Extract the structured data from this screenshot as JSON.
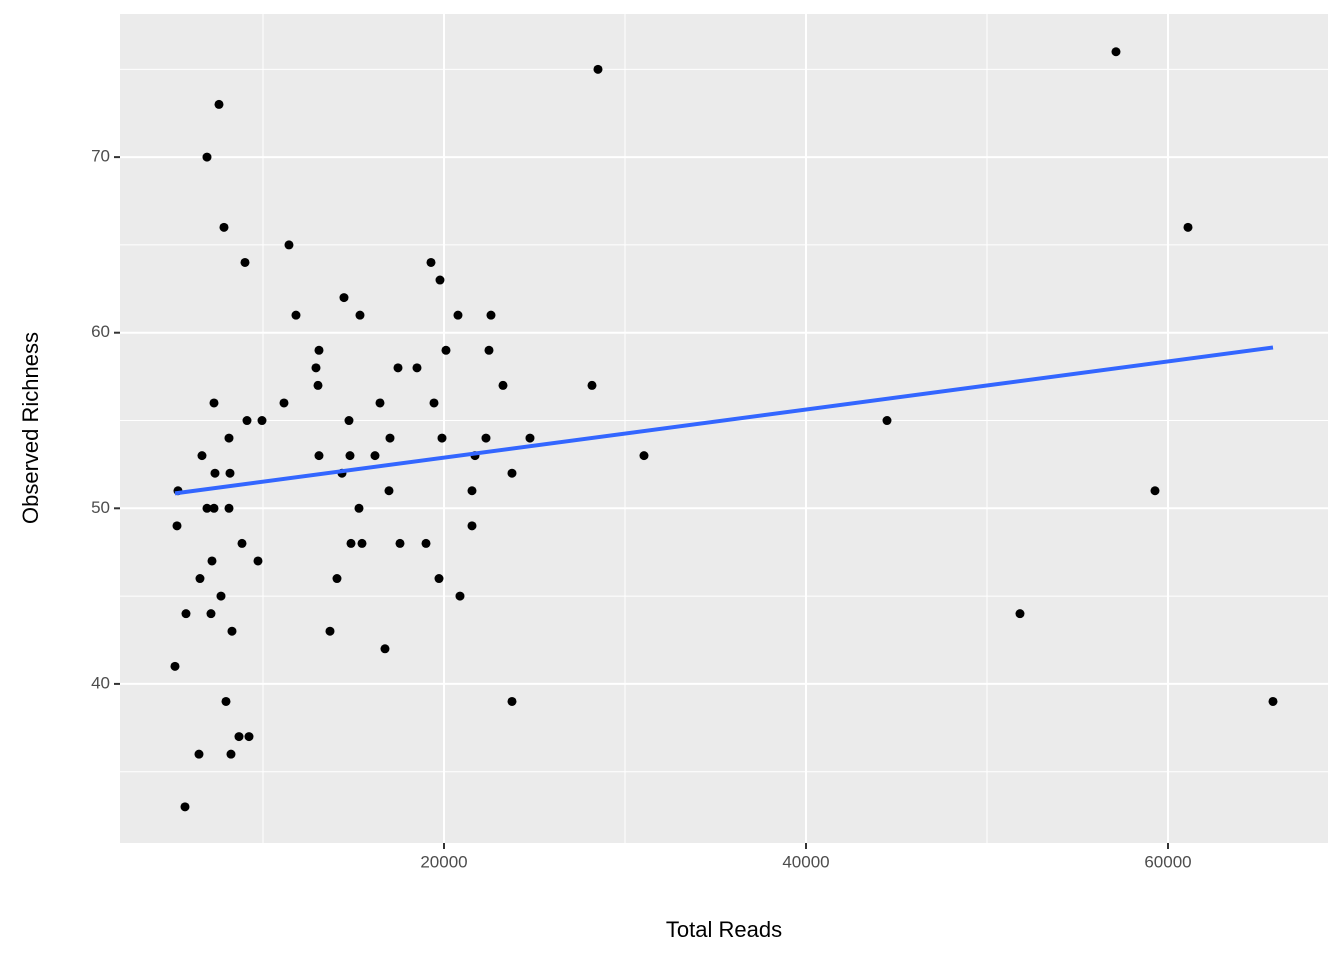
{
  "chart_data": {
    "type": "scatter",
    "x_label": "Total Reads",
    "y_label": "Observed Richness",
    "xlim": [
      2100,
      68840
    ],
    "ylim": [
      30.94,
      78.15
    ],
    "xticks": [
      20000,
      40000,
      60000
    ],
    "yticks": [
      40,
      50,
      60,
      70
    ],
    "minor_xticks": [
      10000,
      30000,
      50000
    ],
    "minor_yticks": [
      35,
      45,
      55,
      65,
      75
    ],
    "grid": true,
    "point_color": "#000000",
    "x": [
      5138,
      5304,
      5249,
      5691,
      5746,
      6464,
      6519,
      6630,
      6906,
      6906,
      7127,
      7182,
      7293,
      7293,
      7348,
      7569,
      7680,
      7845,
      7956,
      8122,
      8122,
      8177,
      8232,
      8287,
      8674,
      8840,
      9006,
      9116,
      9227,
      9724,
      9945,
      11160,
      11436,
      11823,
      12928,
      13039,
      13094,
      13094,
      13702,
      14088,
      14365,
      14475,
      14751,
      14807,
      14862,
      15304,
      15359,
      15470,
      16188,
      16464,
      16740,
      16961,
      17017,
      17459,
      17569,
      18508,
      19006,
      19282,
      19448,
      19724,
      19779,
      19890,
      20110,
      20773,
      20884,
      21547,
      21547,
      21713,
      22320,
      22486,
      22597,
      23260,
      23757,
      23757,
      24751,
      28177,
      28508,
      31050,
      44475,
      51823,
      57127,
      59282,
      61105,
      65801
    ],
    "y": [
      41,
      51,
      49,
      33,
      44,
      36,
      46,
      53,
      70,
      50,
      44,
      47,
      50,
      56,
      52,
      73,
      45,
      66,
      39,
      54,
      50,
      52,
      36,
      43,
      37,
      48,
      64,
      55,
      37,
      47,
      55,
      56,
      65,
      61,
      58,
      57,
      59,
      53,
      43,
      46,
      52,
      62,
      55,
      53,
      48,
      50,
      61,
      48,
      53,
      56,
      42,
      51,
      54,
      58,
      48,
      58,
      48,
      64,
      56,
      46,
      63,
      54,
      59,
      61,
      45,
      51,
      49,
      53,
      54,
      59,
      61,
      57,
      52,
      39,
      54,
      57,
      75,
      53,
      55,
      44,
      76,
      51,
      66,
      39
    ],
    "trend": {
      "color": "#3366ff",
      "x": [
        5138,
        65801
      ],
      "y": [
        50.85,
        59.16
      ]
    }
  }
}
